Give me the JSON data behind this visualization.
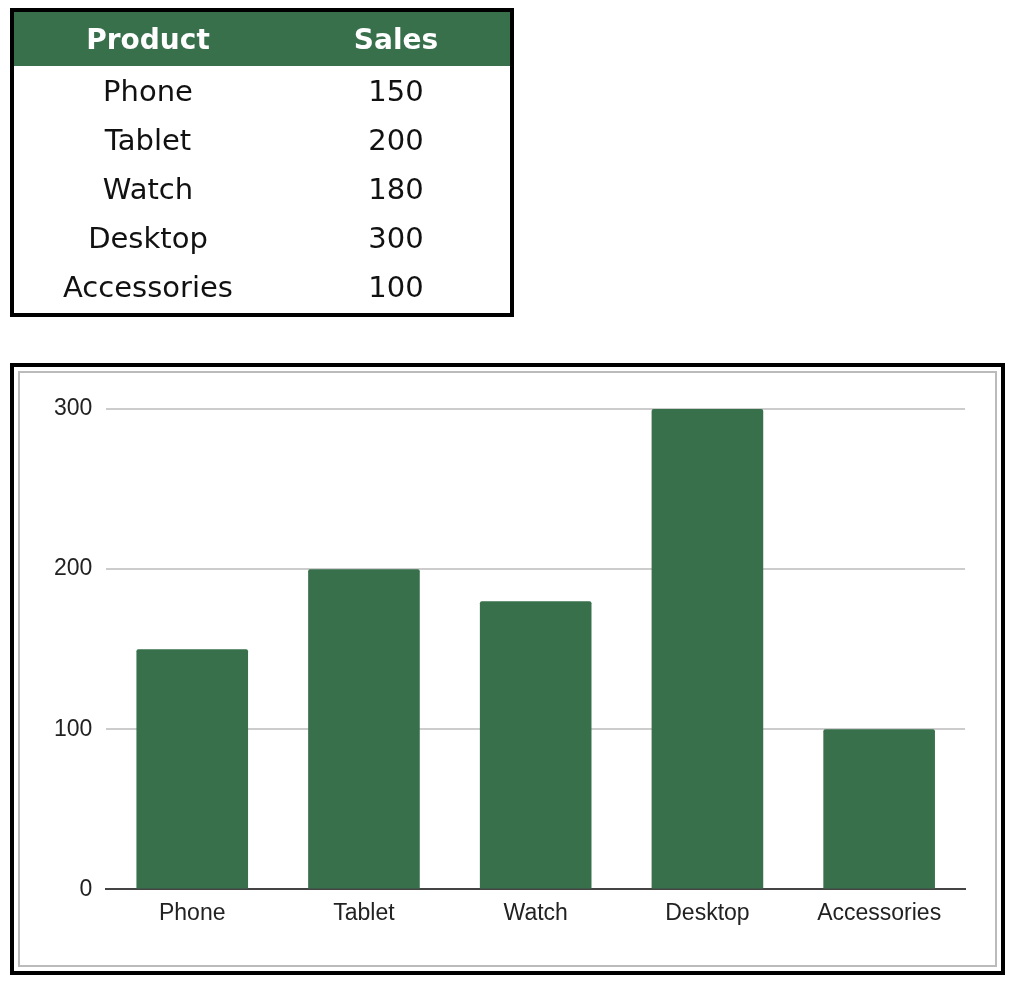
{
  "chart_data": [
    {
      "type": "other",
      "color": "#38704c",
      "annotations": [
        "Product",
        "Sales",
        "Phone",
        "150",
        "Tablet",
        "200",
        "Watch",
        "180",
        "Desktop",
        "300",
        "Accessories",
        "100"
      ]
    },
    {
      "type": "bar",
      "categories": [
        "Phone",
        "Tablet",
        "Watch",
        "Desktop",
        "Accessories"
      ],
      "values": [
        150,
        200,
        180,
        300,
        100
      ],
      "color": "#38704c",
      "ylim": [
        0,
        300
      ],
      "yticks": [
        0,
        100,
        200,
        300
      ],
      "grid": "y",
      "legend": false
    }
  ]
}
